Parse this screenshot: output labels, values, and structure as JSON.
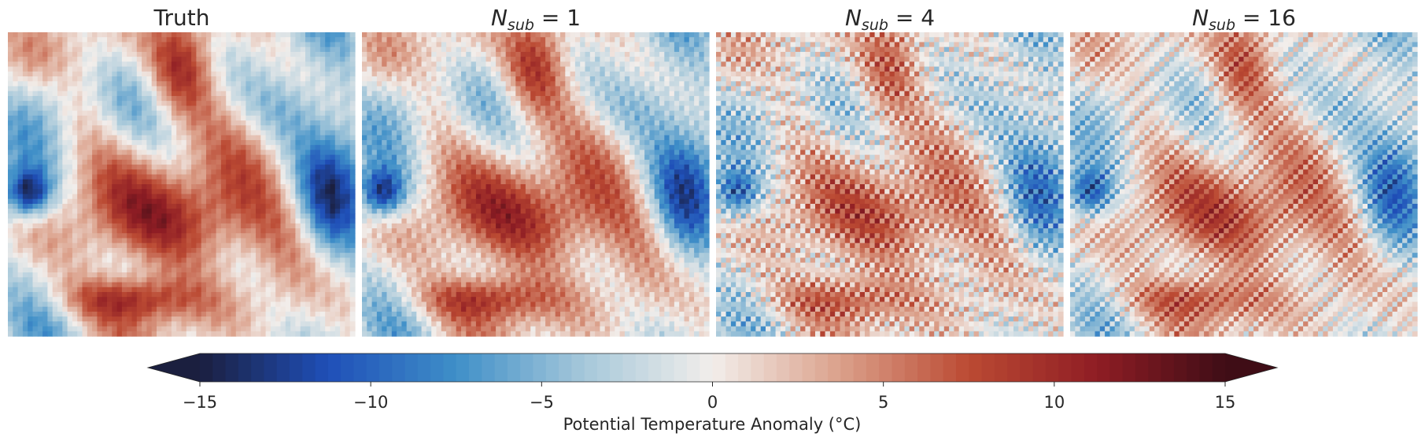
{
  "chart_data": {
    "type": "heatmap",
    "panels": [
      {
        "title": "Truth"
      },
      {
        "title_main": "N",
        "title_sub": "sub",
        "title_rest": " = 1"
      },
      {
        "title_main": "N",
        "title_sub": "sub",
        "title_rest": " = 4"
      },
      {
        "title_main": "N",
        "title_sub": "sub",
        "title_rest": " = 16"
      }
    ],
    "colorbar": {
      "label": "Potential Temperature Anomaly (°C)",
      "range": [
        -15,
        15
      ],
      "ticks": [
        -15,
        -10,
        -5,
        0,
        5,
        10,
        15
      ],
      "tick_labels": [
        "−15",
        "−10",
        "−5",
        "0",
        "5",
        "10",
        "15"
      ],
      "extend": "both",
      "colormap_stops": [
        "#1b1f3f",
        "#1f4fb8",
        "#3f8fc8",
        "#a6c8da",
        "#f2eeeb",
        "#dba08a",
        "#bb4a33",
        "#8f1d24",
        "#3f0d16"
      ]
    },
    "grid": false
  }
}
